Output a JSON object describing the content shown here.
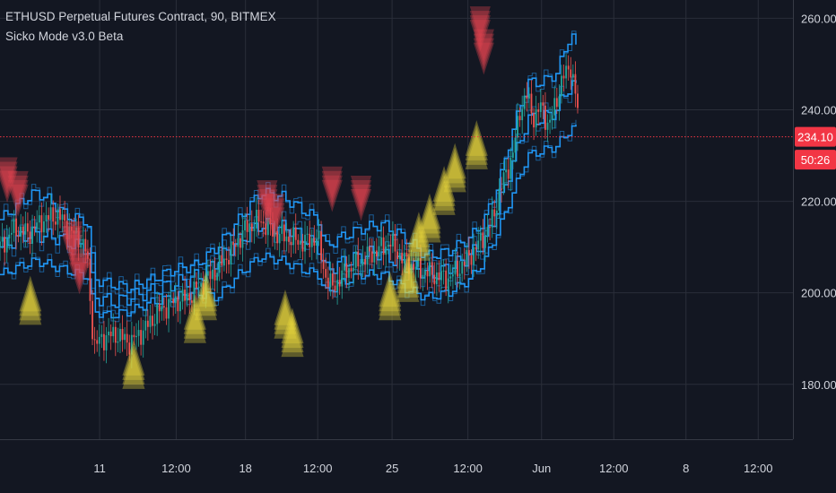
{
  "header": {
    "symbol_line": "ETHUSD Perpetual Futures Contract, 90, BITMEX",
    "indicator_line": "Sicko Mode v3.0 Beta"
  },
  "colors": {
    "background": "#131722",
    "grid": "#2a2e39",
    "axis_text": "#d1d4dc",
    "price_line": "#f23645",
    "price_badge": "#f23645",
    "band": "#2196f3",
    "candle_up": "#26a69a",
    "candle_down": "#ef5350",
    "signal_down": "#e0434f",
    "signal_up": "#e8d63c"
  },
  "chart_data": {
    "type": "line",
    "title": "ETHUSD Perpetual Futures Contract, 90, BITMEX",
    "ylim": [
      168,
      264
    ],
    "y_ticks": [
      {
        "value": 260,
        "label": "260.00"
      },
      {
        "value": 240,
        "label": "240.00"
      },
      {
        "value": 220,
        "label": "220.00"
      },
      {
        "value": 200,
        "label": "200.00"
      },
      {
        "value": 180,
        "label": "180.00"
      }
    ],
    "x_range": [
      0,
      100
    ],
    "x_ticks": [
      {
        "x": 13.8,
        "label": "11"
      },
      {
        "x": 24.4,
        "label": "12:00"
      },
      {
        "x": 34.0,
        "label": "18"
      },
      {
        "x": 44.0,
        "label": "12:00"
      },
      {
        "x": 54.3,
        "label": "25"
      },
      {
        "x": 64.8,
        "label": "12:00"
      },
      {
        "x": 75.0,
        "label": "Jun"
      },
      {
        "x": 85.0,
        "label": "12:00"
      },
      {
        "x": 95.0,
        "label": "8"
      },
      {
        "x": 105.0,
        "label": "12:00"
      }
    ],
    "last_price": {
      "value": 234.1,
      "label": "234.10"
    },
    "countdown": {
      "value": 229.1,
      "label": "50:26"
    },
    "price_series": {
      "name": "",
      "x": [
        0,
        2,
        4,
        6,
        8,
        10,
        11,
        12,
        13,
        14,
        16,
        18,
        20,
        22,
        24,
        26,
        28,
        30,
        32,
        34,
        36,
        38,
        40,
        42,
        44,
        45,
        46,
        48,
        50,
        52,
        54,
        56,
        58,
        60,
        62,
        64,
        66,
        68,
        69,
        70,
        71,
        72,
        73,
        74,
        75,
        76,
        77,
        78,
        79,
        80
      ],
      "y": [
        210,
        214,
        213,
        216,
        217,
        213,
        212,
        209,
        188,
        190,
        191,
        189,
        192,
        196,
        198,
        199,
        202,
        205,
        209,
        214,
        216,
        213,
        212,
        211,
        212,
        204,
        201,
        205,
        207,
        209,
        211,
        207,
        205,
        204,
        203,
        206,
        210,
        215,
        221,
        226,
        230,
        240,
        243,
        238,
        241,
        236,
        242,
        247,
        250,
        240
      ]
    },
    "band_upper": {
      "x": [
        0,
        3,
        5,
        7,
        9,
        11,
        12,
        13,
        15,
        18,
        21,
        24,
        27,
        30,
        33,
        36,
        39,
        42,
        44,
        45,
        47,
        50,
        53,
        56,
        59,
        62,
        65,
        67,
        69,
        71,
        73,
        75,
        77,
        79,
        80
      ],
      "y": [
        216,
        220,
        222,
        220,
        217,
        216,
        216,
        203,
        202,
        201,
        203,
        205,
        206,
        210,
        216,
        222,
        221,
        218,
        216,
        210,
        212,
        214,
        215,
        212,
        208,
        209,
        212,
        216,
        224,
        236,
        246,
        246,
        248,
        257,
        252
      ]
    },
    "band_lower": {
      "x": [
        0,
        3,
        5,
        7,
        9,
        11,
        12,
        13,
        15,
        18,
        21,
        24,
        27,
        30,
        33,
        36,
        39,
        42,
        44,
        45,
        47,
        50,
        53,
        56,
        59,
        62,
        65,
        67,
        69,
        71,
        73,
        75,
        77,
        79,
        80
      ],
      "y": [
        204,
        206,
        207,
        206,
        205,
        204,
        204,
        196,
        195,
        196,
        198,
        199,
        200,
        199,
        204,
        208,
        207,
        205,
        204,
        200,
        202,
        204,
        204,
        201,
        199,
        200,
        203,
        207,
        214,
        222,
        230,
        231,
        232,
        236,
        236
      ]
    },
    "band_mid": {
      "x": [
        0,
        4,
        8,
        11,
        12,
        13,
        16,
        20,
        24,
        28,
        32,
        36,
        40,
        44,
        45,
        48,
        52,
        56,
        60,
        64,
        67,
        69,
        71,
        73,
        75,
        77,
        79,
        80
      ],
      "y": [
        210,
        213,
        212,
        210,
        210,
        199,
        198,
        200,
        202,
        204,
        210,
        215,
        214,
        210,
        205,
        207,
        209,
        206,
        204,
        207,
        211,
        219,
        229,
        238,
        238,
        240,
        246,
        244
      ]
    },
    "signals_down": [
      {
        "x": 1.0,
        "y": 226
      },
      {
        "x": 2.5,
        "y": 223
      },
      {
        "x": 10.0,
        "y": 212
      },
      {
        "x": 11.0,
        "y": 206
      },
      {
        "x": 37.0,
        "y": 221
      },
      {
        "x": 38.0,
        "y": 218
      },
      {
        "x": 46.0,
        "y": 224
      },
      {
        "x": 50.0,
        "y": 222
      },
      {
        "x": 66.5,
        "y": 259
      },
      {
        "x": 67.0,
        "y": 254
      }
    ],
    "signals_up": [
      {
        "x": 4.2,
        "y": 197
      },
      {
        "x": 18.5,
        "y": 183
      },
      {
        "x": 27.0,
        "y": 193
      },
      {
        "x": 28.5,
        "y": 198
      },
      {
        "x": 39.5,
        "y": 194
      },
      {
        "x": 40.5,
        "y": 190
      },
      {
        "x": 54.0,
        "y": 198
      },
      {
        "x": 56.5,
        "y": 202
      },
      {
        "x": 58.0,
        "y": 211
      },
      {
        "x": 59.5,
        "y": 215
      },
      {
        "x": 61.5,
        "y": 221
      },
      {
        "x": 63.0,
        "y": 226
      },
      {
        "x": 66.0,
        "y": 231
      }
    ],
    "grid": true,
    "legend": "top-left"
  }
}
